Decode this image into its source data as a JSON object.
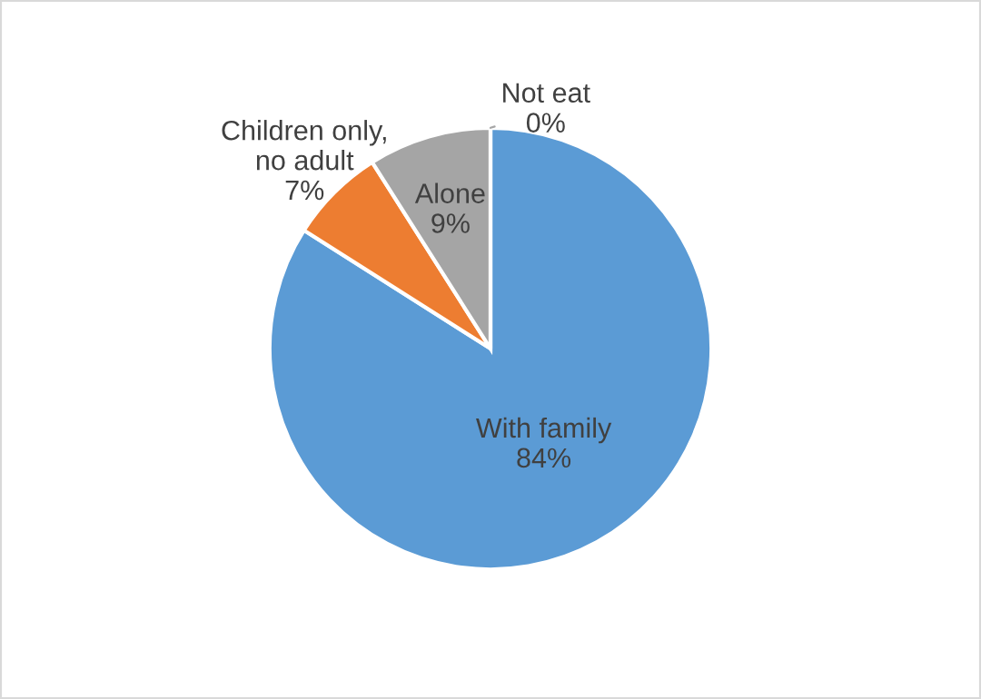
{
  "chart_data": {
    "type": "pie",
    "categories": [
      "With family",
      "Children only, no adult",
      "Alone",
      "Not eat"
    ],
    "values": [
      84,
      7,
      9,
      0
    ],
    "colors": [
      "#5b9bd5",
      "#ed7d31",
      "#a5a5a5",
      "#ffc000"
    ],
    "value_labels": [
      "84%",
      "7%",
      "9%",
      "0%"
    ],
    "legend": false
  }
}
